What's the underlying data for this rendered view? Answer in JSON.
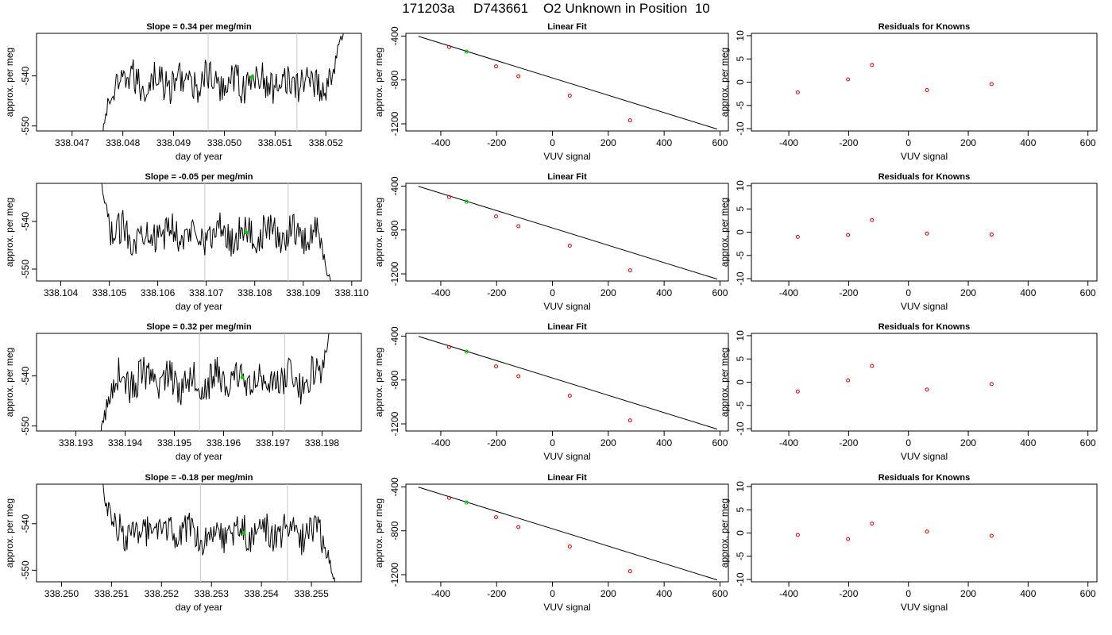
{
  "title": "171203a     D743661    O2 Unknown in Position  10",
  "colors": {
    "trace": "#000000",
    "fit_line": "#000000",
    "known_point": "#cc0000",
    "unknown_point": "#00cc00",
    "divider": "#c8c8c8"
  },
  "chart_data": [
    {
      "panel": "timeseries",
      "row": 1,
      "type": "line",
      "title": "Slope =  0.34  per meg/min",
      "xlabel": "day of year",
      "ylabel": "approx. per meg",
      "x_ticks": [
        "338.047",
        "338.048",
        "338.049",
        "338.050",
        "338.051",
        "338.052"
      ],
      "y_ticks": [
        "-540",
        "-550"
      ],
      "xlim": [
        338.0463,
        338.0527
      ],
      "ylim": [
        -551.0,
        -531.5
      ],
      "x_start": 338.0476,
      "x_end": 338.0524,
      "dividers": [
        338.04968,
        338.05143
      ],
      "unknown_point": [
        338.05055,
        -540.2
      ],
      "level": -541.2
    },
    {
      "panel": "linear_fit",
      "row": 1,
      "type": "scatter",
      "title": "Linear Fit",
      "xlabel": "VUV signal",
      "ylabel": "approx. per meg",
      "x_ticks": [
        "-400",
        "-200",
        "0",
        "200",
        "400",
        "600"
      ],
      "y_ticks": [
        "-400",
        "-800",
        "-1200"
      ],
      "xlim": [
        -525,
        630
      ],
      "ylim": [
        -1265,
        -375
      ],
      "knowns": {
        "x": [
          -370,
          -202,
          -122,
          62,
          278
        ],
        "y": [
          -500,
          -676,
          -766,
          -943,
          -1168
        ]
      },
      "unknown": {
        "x": [
          -308
        ],
        "y": [
          -541
        ]
      },
      "fit_line": {
        "x": [
          -480,
          590
        ],
        "y": [
          -402,
          -1248
        ]
      }
    },
    {
      "panel": "residuals",
      "row": 1,
      "type": "scatter",
      "title": "Residuals for Knowns",
      "xlabel": "VUV signal",
      "ylabel": "approx. per meg",
      "x_ticks": [
        "-400",
        "-200",
        "0",
        "200",
        "400",
        "600"
      ],
      "y_ticks": [
        "10",
        "5",
        "0",
        "-5",
        "-10"
      ],
      "xlim": [
        -525,
        630
      ],
      "ylim": [
        -10.5,
        10.5
      ],
      "x": [
        -370,
        -202,
        -122,
        62,
        278
      ],
      "y": [
        -2.2,
        0.6,
        3.7,
        -1.7,
        -0.4
      ]
    },
    {
      "panel": "timeseries",
      "row": 2,
      "type": "line",
      "title": "Slope =  -0.05  per meg/min",
      "xlabel": "day of year",
      "ylabel": "approx. per meg",
      "x_ticks": [
        "338.104",
        "338.105",
        "338.106",
        "338.107",
        "338.108",
        "338.109",
        "338.110"
      ],
      "y_ticks": [
        "-540",
        "-550"
      ],
      "xlim": [
        338.1035,
        338.1102
      ],
      "ylim": [
        -552.5,
        -532.0
      ],
      "x_start": 338.1048,
      "x_end": 338.1096,
      "dividers": [
        338.10697,
        338.10869
      ],
      "unknown_point": [
        338.10782,
        -542.3
      ],
      "level": -542.6
    },
    {
      "panel": "linear_fit",
      "row": 2,
      "type": "scatter",
      "title": "Linear Fit",
      "xlabel": "VUV signal",
      "ylabel": "approx. per meg",
      "x_ticks": [
        "-400",
        "-200",
        "0",
        "200",
        "400",
        "600"
      ],
      "y_ticks": [
        "-400",
        "-800",
        "-1200"
      ],
      "xlim": [
        -525,
        630
      ],
      "ylim": [
        -1265,
        -375
      ],
      "knowns": {
        "x": [
          -370,
          -202,
          -122,
          62,
          278
        ],
        "y": [
          -500,
          -676,
          -766,
          -943,
          -1168
        ]
      },
      "unknown": {
        "x": [
          -308
        ],
        "y": [
          -542
        ]
      },
      "fit_line": {
        "x": [
          -480,
          590
        ],
        "y": [
          -402,
          -1248
        ]
      }
    },
    {
      "panel": "residuals",
      "row": 2,
      "type": "scatter",
      "title": "Residuals for Knowns",
      "xlabel": "VUV signal",
      "ylabel": "approx. per meg",
      "x_ticks": [
        "-400",
        "-200",
        "0",
        "200",
        "400",
        "600"
      ],
      "y_ticks": [
        "10",
        "5",
        "0",
        "-5",
        "-10"
      ],
      "xlim": [
        -525,
        630
      ],
      "ylim": [
        -10.5,
        10.5
      ],
      "x": [
        -370,
        -202,
        -122,
        62,
        278
      ],
      "y": [
        -1.0,
        -0.6,
        2.6,
        -0.3,
        -0.5
      ]
    },
    {
      "panel": "timeseries",
      "row": 3,
      "type": "line",
      "title": "Slope =  0.32  per meg/min",
      "xlabel": "day of year",
      "ylabel": "approx. per meg",
      "x_ticks": [
        "338.193",
        "338.194",
        "338.195",
        "338.196",
        "338.197",
        "338.198"
      ],
      "y_ticks": [
        "-540",
        "-550"
      ],
      "xlim": [
        338.1922,
        338.1988
      ],
      "ylim": [
        -551.0,
        -531.5
      ],
      "x_start": 338.1935,
      "x_end": 338.1982,
      "dividers": [
        338.19551,
        338.19724
      ],
      "unknown_point": [
        338.19638,
        -540.3
      ],
      "level": -540.9
    },
    {
      "panel": "linear_fit",
      "row": 3,
      "type": "scatter",
      "title": "Linear Fit",
      "xlabel": "VUV signal",
      "ylabel": "approx. per meg",
      "x_ticks": [
        "-400",
        "-200",
        "0",
        "200",
        "400",
        "600"
      ],
      "y_ticks": [
        "-400",
        "-800",
        "-1200"
      ],
      "xlim": [
        -525,
        630
      ],
      "ylim": [
        -1265,
        -375
      ],
      "knowns": {
        "x": [
          -370,
          -202,
          -122,
          62,
          278
        ],
        "y": [
          -500,
          -676,
          -766,
          -943,
          -1168
        ]
      },
      "unknown": {
        "x": [
          -308
        ],
        "y": [
          -541
        ]
      },
      "fit_line": {
        "x": [
          -480,
          590
        ],
        "y": [
          -402,
          -1248
        ]
      }
    },
    {
      "panel": "residuals",
      "row": 3,
      "type": "scatter",
      "title": "Residuals for Knowns",
      "xlabel": "VUV signal",
      "ylabel": "approx. per meg",
      "x_ticks": [
        "-400",
        "-200",
        "0",
        "200",
        "400",
        "600"
      ],
      "y_ticks": [
        "10",
        "5",
        "0",
        "-5",
        "-10"
      ],
      "xlim": [
        -525,
        630
      ],
      "ylim": [
        -10.5,
        10.5
      ],
      "x": [
        -370,
        -202,
        -122,
        62,
        278
      ],
      "y": [
        -2.0,
        0.4,
        3.5,
        -1.6,
        -0.4
      ]
    },
    {
      "panel": "timeseries",
      "row": 4,
      "type": "line",
      "title": "Slope =  -0.18  per meg/min",
      "xlabel": "day of year",
      "ylabel": "approx. per meg",
      "x_ticks": [
        "338.250",
        "338.251",
        "338.252",
        "338.253",
        "338.254",
        "338.255"
      ],
      "y_ticks": [
        "-540",
        "-550"
      ],
      "xlim": [
        338.2495,
        338.256
      ],
      "ylim": [
        -552.5,
        -531.5
      ],
      "x_start": 338.2508,
      "x_end": 338.2555,
      "dividers": [
        338.25278,
        338.25452
      ],
      "unknown_point": [
        338.25365,
        -542.0
      ],
      "level": -541.9
    },
    {
      "panel": "linear_fit",
      "row": 4,
      "type": "scatter",
      "title": "Linear Fit",
      "xlabel": "VUV signal",
      "ylabel": "approx. per meg",
      "x_ticks": [
        "-400",
        "-200",
        "0",
        "200",
        "400",
        "600"
      ],
      "y_ticks": [
        "-400",
        "-800",
        "-1200"
      ],
      "xlim": [
        -525,
        630
      ],
      "ylim": [
        -1265,
        -375
      ],
      "knowns": {
        "x": [
          -370,
          -202,
          -122,
          62,
          278
        ],
        "y": [
          -500,
          -676,
          -766,
          -943,
          -1168
        ]
      },
      "unknown": {
        "x": [
          -308
        ],
        "y": [
          -542
        ]
      },
      "fit_line": {
        "x": [
          -480,
          590
        ],
        "y": [
          -402,
          -1248
        ]
      }
    },
    {
      "panel": "residuals",
      "row": 4,
      "type": "scatter",
      "title": "Residuals for Knowns",
      "xlabel": "VUV signal",
      "ylabel": "approx. per meg",
      "x_ticks": [
        "-400",
        "-200",
        "0",
        "200",
        "400",
        "600"
      ],
      "y_ticks": [
        "10",
        "5",
        "0",
        "-5",
        "-10"
      ],
      "xlim": [
        -525,
        630
      ],
      "ylim": [
        -10.5,
        10.5
      ],
      "x": [
        -370,
        -202,
        -122,
        62,
        278
      ],
      "y": [
        -0.4,
        -1.3,
        2.0,
        0.3,
        -0.6
      ]
    }
  ]
}
